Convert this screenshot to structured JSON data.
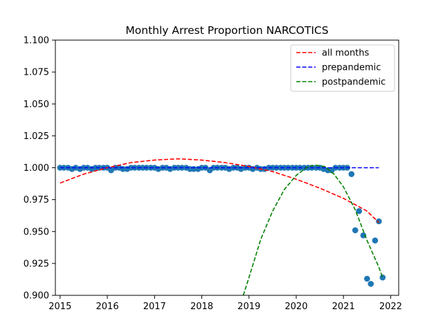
{
  "chart_data": {
    "type": "scatter",
    "title": "Monthly Arrest Proportion NARCOTICS",
    "xlabel": "",
    "ylabel": "",
    "xlim": [
      2014.9,
      2022.17
    ],
    "ylim": [
      0.9,
      1.1
    ],
    "x_ticks": [
      "2015",
      "2016",
      "2017",
      "2018",
      "2019",
      "2020",
      "2021",
      "2022"
    ],
    "y_ticks": [
      "0.900",
      "0.925",
      "0.950",
      "0.975",
      "1.000",
      "1.025",
      "1.050",
      "1.075",
      "1.100"
    ],
    "grid": false,
    "legend_position": "upper right",
    "scatter": {
      "name": "",
      "color": "#1f77b4",
      "points": [
        [
          2015.0,
          1.0
        ],
        [
          2015.08,
          1.0
        ],
        [
          2015.17,
          1.0
        ],
        [
          2015.25,
          0.999
        ],
        [
          2015.33,
          1.0
        ],
        [
          2015.42,
          0.999
        ],
        [
          2015.5,
          1.0
        ],
        [
          2015.58,
          1.0
        ],
        [
          2015.67,
          0.999
        ],
        [
          2015.75,
          1.0
        ],
        [
          2015.83,
          1.0
        ],
        [
          2015.92,
          1.0
        ],
        [
          2016.0,
          1.0
        ],
        [
          2016.08,
          0.998
        ],
        [
          2016.17,
          1.0
        ],
        [
          2016.25,
          1.0
        ],
        [
          2016.33,
          0.999
        ],
        [
          2016.42,
          0.999
        ],
        [
          2016.5,
          1.0
        ],
        [
          2016.58,
          1.0
        ],
        [
          2016.67,
          1.0
        ],
        [
          2016.75,
          1.0
        ],
        [
          2016.83,
          1.0
        ],
        [
          2016.92,
          1.0
        ],
        [
          2017.0,
          1.0
        ],
        [
          2017.08,
          0.999
        ],
        [
          2017.17,
          1.0
        ],
        [
          2017.25,
          1.0
        ],
        [
          2017.33,
          0.999
        ],
        [
          2017.42,
          1.0
        ],
        [
          2017.5,
          1.0
        ],
        [
          2017.58,
          1.0
        ],
        [
          2017.67,
          1.0
        ],
        [
          2017.75,
          0.999
        ],
        [
          2017.83,
          0.999
        ],
        [
          2017.92,
          0.999
        ],
        [
          2018.0,
          1.0
        ],
        [
          2018.08,
          1.0
        ],
        [
          2018.17,
          0.998
        ],
        [
          2018.25,
          1.0
        ],
        [
          2018.33,
          1.0
        ],
        [
          2018.42,
          1.0
        ],
        [
          2018.5,
          1.0
        ],
        [
          2018.58,
          0.999
        ],
        [
          2018.67,
          1.0
        ],
        [
          2018.75,
          1.0
        ],
        [
          2018.83,
          0.999
        ],
        [
          2018.92,
          1.0
        ],
        [
          2019.0,
          1.0
        ],
        [
          2019.08,
          0.999
        ],
        [
          2019.17,
          1.0
        ],
        [
          2019.25,
          0.999
        ],
        [
          2019.33,
          0.999
        ],
        [
          2019.42,
          1.0
        ],
        [
          2019.5,
          1.0
        ],
        [
          2019.58,
          1.0
        ],
        [
          2019.67,
          1.0
        ],
        [
          2019.75,
          1.0
        ],
        [
          2019.83,
          1.0
        ],
        [
          2019.92,
          1.0
        ],
        [
          2020.0,
          1.0
        ],
        [
          2020.08,
          1.0
        ],
        [
          2020.17,
          1.0
        ],
        [
          2020.25,
          1.0
        ],
        [
          2020.33,
          1.0
        ],
        [
          2020.42,
          1.0
        ],
        [
          2020.5,
          1.0
        ],
        [
          2020.58,
          0.999
        ],
        [
          2020.67,
          0.998
        ],
        [
          2020.75,
          0.998
        ],
        [
          2020.83,
          1.0
        ],
        [
          2020.92,
          1.0
        ],
        [
          2021.0,
          1.0
        ],
        [
          2021.08,
          1.0
        ],
        [
          2021.17,
          0.995
        ],
        [
          2021.25,
          0.951
        ],
        [
          2021.33,
          0.966
        ],
        [
          2021.42,
          0.947
        ],
        [
          2021.5,
          0.913
        ],
        [
          2021.58,
          0.909
        ],
        [
          2021.67,
          0.943
        ],
        [
          2021.75,
          0.958
        ],
        [
          2021.83,
          0.914
        ]
      ]
    },
    "series": [
      {
        "name": "all months",
        "color": "#ff0000",
        "style": "dashed",
        "x": [
          2015.0,
          2015.5,
          2016.0,
          2016.5,
          2017.0,
          2017.5,
          2018.0,
          2018.5,
          2019.0,
          2019.5,
          2020.0,
          2020.5,
          2021.0,
          2021.5,
          2021.75
        ],
        "y": [
          0.988,
          0.995,
          1.0,
          1.004,
          1.006,
          1.007,
          1.006,
          1.004,
          1.001,
          0.997,
          0.991,
          0.984,
          0.976,
          0.966,
          0.957
        ]
      },
      {
        "name": "prepandemic",
        "color": "#0000ff",
        "style": "dashed",
        "x": [
          2015.0,
          2021.75
        ],
        "y": [
          1.0,
          1.0
        ]
      },
      {
        "name": "postpandemic",
        "color": "#008000",
        "style": "dashed",
        "x": [
          2018.88,
          2019.0,
          2019.25,
          2019.5,
          2019.75,
          2020.0,
          2020.25,
          2020.4,
          2020.6,
          2020.8,
          2021.0,
          2021.25,
          2021.5,
          2021.75,
          2021.83
        ],
        "y": [
          0.9,
          0.914,
          0.944,
          0.966,
          0.983,
          0.994,
          1.001,
          1.002,
          1.001,
          0.995,
          0.985,
          0.967,
          0.943,
          0.922,
          0.914
        ]
      }
    ]
  }
}
